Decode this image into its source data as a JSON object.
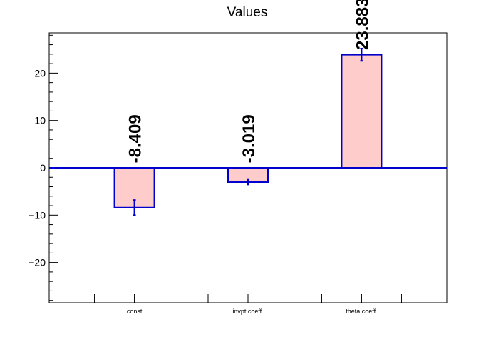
{
  "chart_data": {
    "type": "bar",
    "title": "Values",
    "xlabel": "",
    "ylabel": "",
    "categories": [
      "const",
      "invpt coeff.",
      "theta coeff."
    ],
    "values": [
      -8.409,
      -3.019,
      23.883
    ],
    "value_labels": [
      "-8.409",
      "-3.019",
      "23.883"
    ],
    "errors": [
      1.6,
      0.5,
      1.3
    ],
    "ylim": [
      -28.5,
      28.5
    ],
    "yticks": [
      -20,
      -10,
      0,
      10,
      20
    ],
    "ytick_labels": [
      "−20",
      "−10",
      "0",
      "10",
      "20"
    ],
    "grid": false,
    "legend": "none",
    "colors": {
      "bar_fill": "#ffcccc",
      "bar_edge": "#0000cc",
      "zero_line": "#0000cc",
      "axis": "#000000",
      "text": "#000000"
    }
  }
}
